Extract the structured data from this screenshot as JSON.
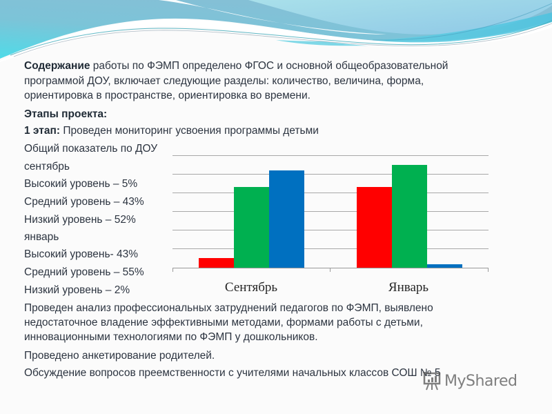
{
  "slide": {
    "intro": {
      "bold_lead": "Содержание",
      "line1_rest": " работы по ФЭМП определено ФГОС и основной общеобразовательной",
      "line2": "программой ДОУ,  включает следующие разделы: количество, величина, форма,",
      "line3": "ориентировка в пространстве, ориентировка во времени."
    },
    "stages_heading": "Этапы проекта:",
    "stage1": {
      "bold_lead": "1 этап:",
      "text": " Проведен мониторинг усвоения программы детьми"
    },
    "summary": {
      "title": "Общий показатель по ДОУ",
      "september_label": "сентябрь",
      "sept_high": "Высокий уровень –  5%",
      "sept_mid": "Средний уровень –  43%",
      "sept_low": "Низкий уровень –  52%",
      "january_label": "январь",
      "jan_high": "Высокий уровень- 43%",
      "jan_mid": "Средний уровень – 55%",
      "jan_low": "Низкий уровень – 2%"
    },
    "analysis": {
      "line1": "Проведен анализ профессиональных затруднений педагогов по ФЭМП, выявлено",
      "line2": "недостаточное владение эффективными методами, формами работы с детьми,",
      "line3": "инновационными технологиями по ФЭМП у дошкольников."
    },
    "survey": "Проведено анкетирование родителей.",
    "discussion": "Обсуждение вопросов преемственности с учителями начальных классов СОШ № 5",
    "watermark": "MyShared"
  },
  "colors": {
    "high": "#ff0000",
    "mid": "#00b050",
    "low": "#0070c0",
    "header_blue": "#7ec3d9",
    "header_cyan": "#5ad7e6"
  },
  "chart_data": {
    "type": "bar",
    "title": "",
    "categories": [
      "Сентябрь",
      "Январь"
    ],
    "series": [
      {
        "name": "Высокий уровень",
        "color": "#ff0000",
        "values": [
          5,
          43
        ]
      },
      {
        "name": "Средний уровень",
        "color": "#00b050",
        "values": [
          43,
          55
        ]
      },
      {
        "name": "Низкий уровень",
        "color": "#0070c0",
        "values": [
          52,
          2
        ]
      }
    ],
    "xlabel": "",
    "ylabel": "",
    "ylim": [
      0,
      60
    ],
    "yticks": [
      0,
      10,
      20,
      30,
      40,
      50,
      60
    ],
    "grid": true,
    "legend": "none"
  }
}
